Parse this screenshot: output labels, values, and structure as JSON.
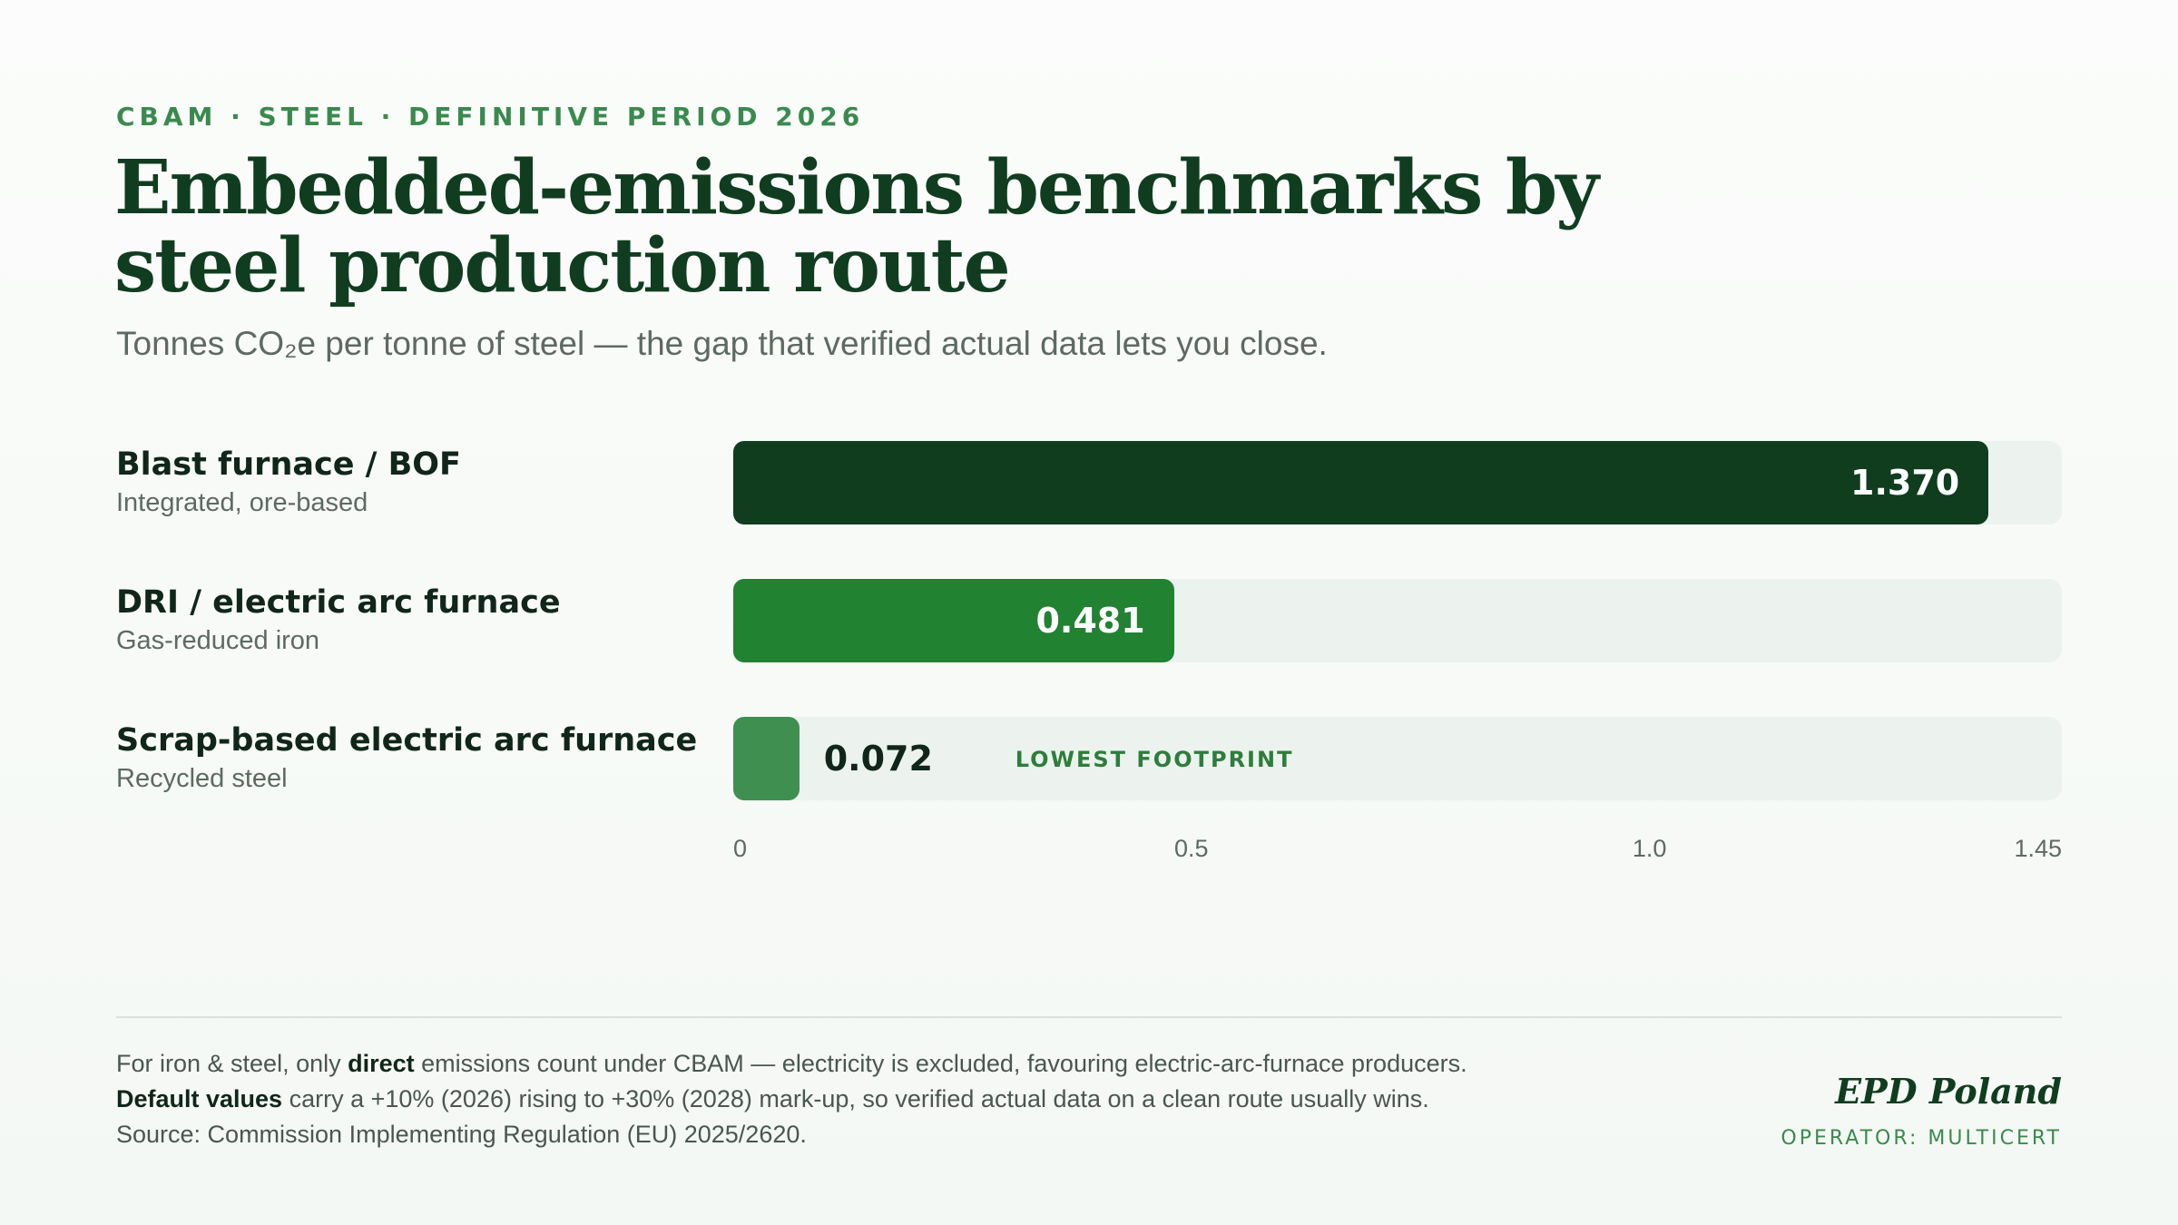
{
  "header": {
    "kicker": "CBAM · STEEL · DEFINITIVE PERIOD 2026",
    "title": "Embedded-emissions benchmarks by steel production route",
    "subtitle": "Tonnes CO₂e per tonne of steel — the gap that verified actual data lets you close."
  },
  "chart_data": {
    "type": "bar",
    "orientation": "horizontal",
    "unit": "Tonnes CO₂e per tonne of steel",
    "xlim": [
      0,
      1.45
    ],
    "ticks": [
      {
        "value": 0,
        "label": "0"
      },
      {
        "value": 0.5,
        "label": "0.5"
      },
      {
        "value": 1.0,
        "label": "1.0"
      },
      {
        "value": 1.45,
        "label": "1.45"
      }
    ],
    "grid": false,
    "legend": "none",
    "categories": [
      "Blast furnace / BOF",
      "DRI / electric arc furnace",
      "Scrap-based electric arc furnace"
    ],
    "values": [
      1.37,
      0.481,
      0.072
    ],
    "rows": [
      {
        "label": "Blast furnace / BOF",
        "sublabel": "Integrated, ore-based",
        "value": 1.37,
        "value_label": "1.370",
        "color": "#0f3d1e",
        "badge": ""
      },
      {
        "label": "DRI / electric arc furnace",
        "sublabel": "Gas-reduced iron",
        "value": 0.481,
        "value_label": "0.481",
        "color": "#218232",
        "badge": ""
      },
      {
        "label": "Scrap-based electric arc furnace",
        "sublabel": "Recycled steel",
        "value": 0.072,
        "value_label": "0.072",
        "color": "#3f8f50",
        "badge": "LOWEST FOOTPRINT"
      }
    ],
    "track_color": "#ecf3ee"
  },
  "footer": {
    "note1": {
      "before": "For iron & steel, only ",
      "bold": "direct",
      "after": " emissions count under CBAM — electricity is excluded, favouring electric-arc-furnace producers."
    },
    "note2": {
      "bold": "Default values",
      "after": " carry a +10% (2026) rising to +30% (2028) mark-up, so verified actual data on a clean route usually wins."
    },
    "source": "Source: Commission Implementing Regulation (EU) 2025/2620.",
    "brand": "EPD Poland",
    "operator": "OPERATOR: MULTICERT"
  }
}
